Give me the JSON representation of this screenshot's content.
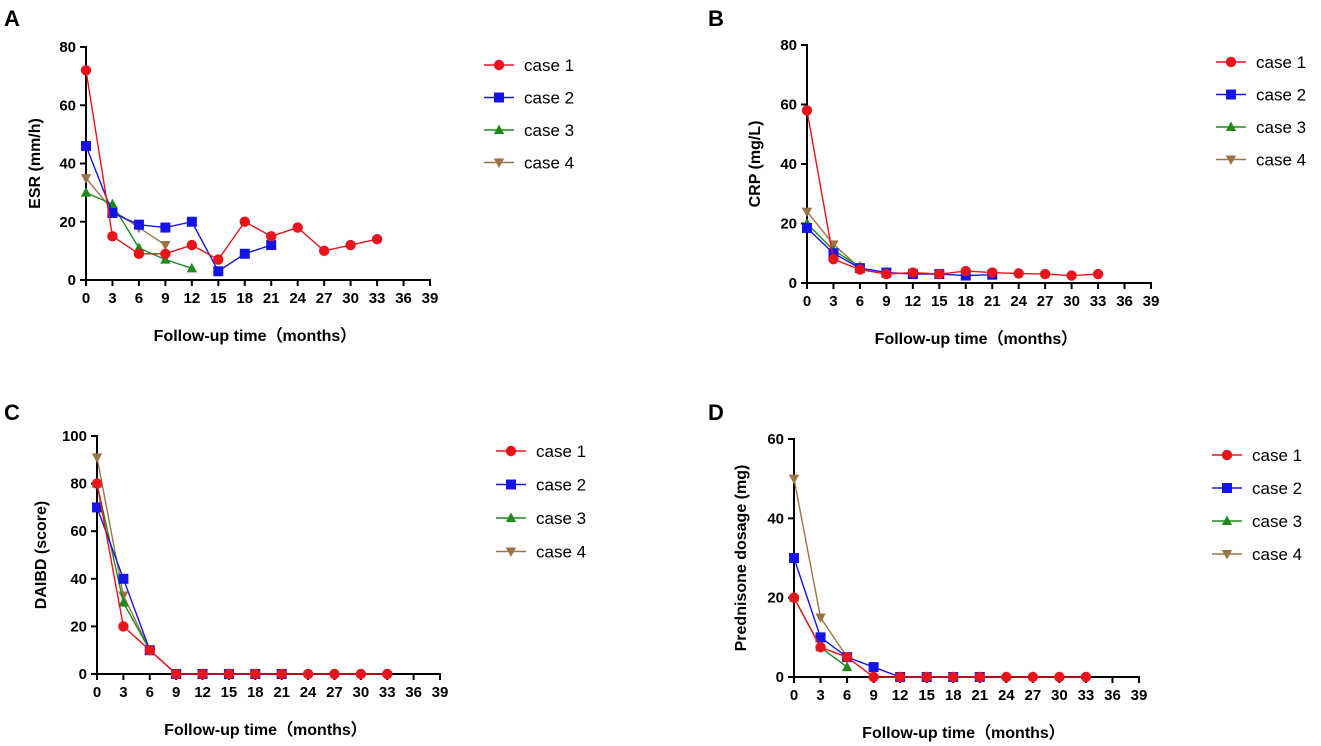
{
  "colors": {
    "case 1": "#e8141b",
    "case 2": "#1414e6",
    "case 3": "#1e8a1e",
    "case 4": "#9b7446"
  },
  "chart_data": [
    {
      "type": "line",
      "panel": "A",
      "xlabel": "Follow-up time（months）",
      "ylabel": "ESR (mm/h)",
      "xlim": [
        0,
        39
      ],
      "ylim": [
        0,
        80
      ],
      "xticks": [
        0,
        3,
        6,
        9,
        12,
        15,
        18,
        21,
        24,
        27,
        30,
        33,
        36,
        39
      ],
      "yticks": [
        0,
        20,
        40,
        60,
        80
      ],
      "legend_position": "right",
      "series": [
        {
          "name": "case 1",
          "marker": "circle",
          "x": [
            0,
            3,
            6,
            9,
            12,
            15,
            18,
            21,
            24,
            27,
            30,
            33
          ],
          "y": [
            72,
            15,
            9,
            9,
            12,
            7,
            20,
            15,
            18,
            10,
            12,
            14
          ]
        },
        {
          "name": "case 2",
          "marker": "square",
          "x": [
            0,
            3,
            6,
            9,
            12,
            15,
            18,
            21
          ],
          "y": [
            46,
            23,
            19,
            18,
            20,
            3,
            9,
            12
          ]
        },
        {
          "name": "case 3",
          "marker": "triangle-up",
          "x": [
            0,
            3,
            6,
            9,
            12
          ],
          "y": [
            30,
            26,
            11,
            7,
            4
          ]
        },
        {
          "name": "case 4",
          "marker": "triangle-down",
          "x": [
            0,
            3,
            6,
            9
          ],
          "y": [
            35,
            24,
            18,
            12
          ]
        }
      ]
    },
    {
      "type": "line",
      "panel": "B",
      "xlabel": "Follow-up time（months）",
      "ylabel": "CRP (mg/L)",
      "xlim": [
        0,
        39
      ],
      "ylim": [
        0,
        80
      ],
      "xticks": [
        0,
        3,
        6,
        9,
        12,
        15,
        18,
        21,
        24,
        27,
        30,
        33,
        36,
        39
      ],
      "yticks": [
        0,
        20,
        40,
        60,
        80
      ],
      "legend_position": "right",
      "series": [
        {
          "name": "case 1",
          "marker": "circle",
          "x": [
            0,
            3,
            6,
            9,
            12,
            15,
            18,
            21,
            24,
            27,
            30,
            33
          ],
          "y": [
            58,
            8,
            4.5,
            3,
            3.5,
            3,
            4,
            3.5,
            3.2,
            3,
            2.5,
            3
          ]
        },
        {
          "name": "case 2",
          "marker": "square",
          "x": [
            0,
            3,
            6,
            9,
            12,
            15,
            18,
            21
          ],
          "y": [
            18.5,
            10,
            5,
            3.5,
            3,
            3,
            2.5,
            2.8
          ]
        },
        {
          "name": "case 3",
          "marker": "triangle-up",
          "x": [
            0,
            3,
            6
          ],
          "y": [
            20,
            11,
            5.5
          ]
        },
        {
          "name": "case 4",
          "marker": "triangle-down",
          "x": [
            0,
            3,
            6
          ],
          "y": [
            24,
            13,
            5
          ]
        }
      ]
    },
    {
      "type": "line",
      "panel": "C",
      "xlabel": "Follow-up time（months）",
      "ylabel": "DAIBD (score)",
      "xlim": [
        0,
        39
      ],
      "ylim": [
        0,
        100
      ],
      "xticks": [
        0,
        3,
        6,
        9,
        12,
        15,
        18,
        21,
        24,
        27,
        30,
        33,
        36,
        39
      ],
      "yticks": [
        0,
        20,
        40,
        60,
        80,
        100
      ],
      "legend_position": "right",
      "series": [
        {
          "name": "case 1",
          "marker": "circle",
          "x": [
            0,
            3,
            6,
            9,
            12,
            15,
            18,
            21,
            24,
            27,
            30,
            33
          ],
          "y": [
            80,
            20,
            10,
            0,
            0,
            0,
            0,
            0,
            0,
            0,
            0,
            0
          ]
        },
        {
          "name": "case 2",
          "marker": "square",
          "x": [
            0,
            3,
            6,
            9,
            12,
            15,
            18,
            21
          ],
          "y": [
            70,
            40,
            10,
            0,
            0,
            0,
            0,
            0
          ]
        },
        {
          "name": "case 3",
          "marker": "triangle-up",
          "x": [
            0,
            3,
            6
          ],
          "y": [
            80,
            30,
            10
          ]
        },
        {
          "name": "case 4",
          "marker": "triangle-down",
          "x": [
            0,
            3,
            6
          ],
          "y": [
            91,
            33,
            10
          ]
        }
      ]
    },
    {
      "type": "line",
      "panel": "D",
      "xlabel": "Follow-up time（months）",
      "ylabel": "Prednisone dosage (mg)",
      "xlim": [
        0,
        39
      ],
      "ylim": [
        0,
        60
      ],
      "xticks": [
        0,
        3,
        6,
        9,
        12,
        15,
        18,
        21,
        24,
        27,
        30,
        33,
        36,
        39
      ],
      "yticks": [
        0,
        20,
        40,
        60
      ],
      "legend_position": "right",
      "series": [
        {
          "name": "case 1",
          "marker": "circle",
          "x": [
            0,
            3,
            6,
            9,
            12,
            15,
            18,
            21,
            24,
            27,
            30,
            33
          ],
          "y": [
            20,
            7.5,
            5,
            0,
            0,
            0,
            0,
            0,
            0,
            0,
            0,
            0
          ]
        },
        {
          "name": "case 2",
          "marker": "square",
          "x": [
            0,
            3,
            6,
            9,
            12,
            15,
            18,
            21
          ],
          "y": [
            30,
            10,
            5,
            2.5,
            0,
            0,
            0,
            0
          ]
        },
        {
          "name": "case 3",
          "marker": "triangle-up",
          "x": [
            0,
            3,
            6
          ],
          "y": [
            20,
            7.5,
            2.5
          ]
        },
        {
          "name": "case 4",
          "marker": "triangle-down",
          "x": [
            0,
            3,
            6
          ],
          "y": [
            50,
            15,
            5
          ]
        }
      ]
    }
  ]
}
